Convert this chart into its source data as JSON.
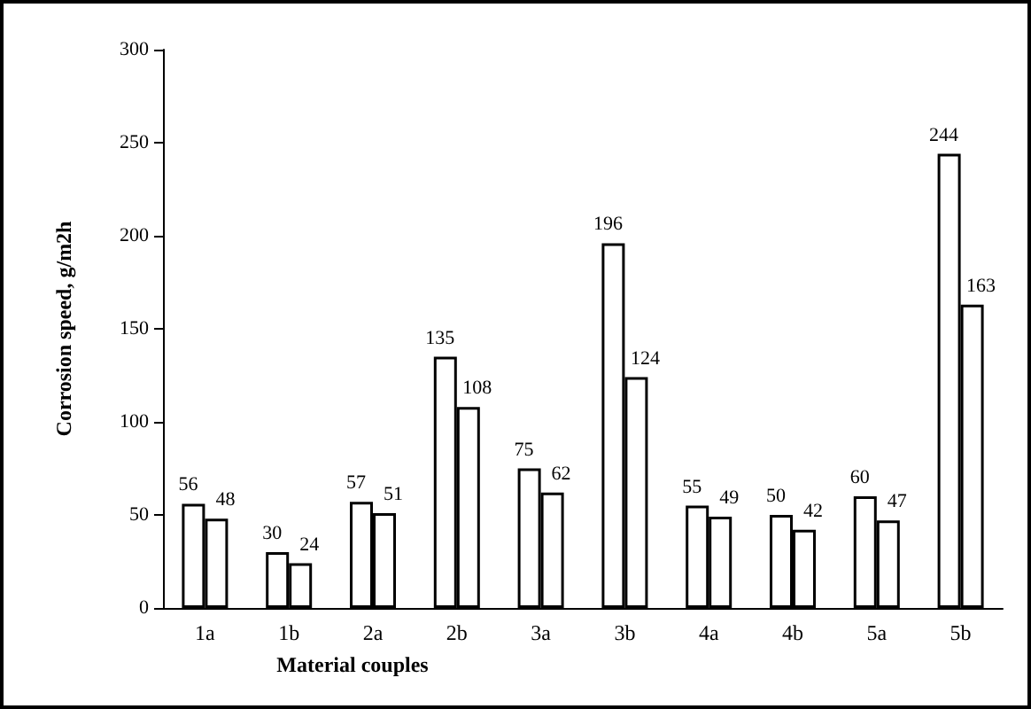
{
  "chart_data": {
    "type": "bar",
    "xlabel": "Material couples",
    "ylabel": "Corrosion speed, g/m2h",
    "categories": [
      "1a",
      "1b",
      "2a",
      "2b",
      "3a",
      "3b",
      "4a",
      "4b",
      "5a",
      "5b"
    ],
    "series": [
      {
        "color": "#ffffff",
        "values": [
          56,
          30,
          57,
          135,
          75,
          196,
          55,
          50,
          60,
          244
        ]
      },
      {
        "color": "#ffffff",
        "values": [
          48,
          24,
          51,
          108,
          62,
          124,
          49,
          42,
          47,
          163
        ]
      }
    ],
    "ylim": [
      0,
      300
    ],
    "yticks": [
      0,
      50,
      100,
      150,
      200,
      250,
      300
    ],
    "grid": false,
    "data_labels": true
  }
}
